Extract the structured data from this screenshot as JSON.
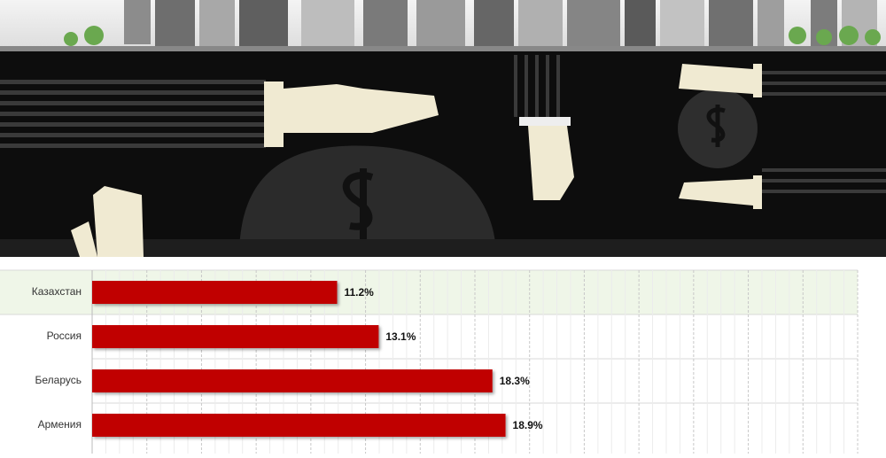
{
  "chart_data": {
    "type": "bar",
    "orientation": "horizontal",
    "categories": [
      "Казахстан",
      "Россия",
      "Беларусь",
      "Армения"
    ],
    "values": [
      11.2,
      13.1,
      18.3,
      18.9
    ],
    "value_labels": [
      "11.2%",
      "13.1%",
      "18.3%",
      "18.9%"
    ],
    "color": "#c00000",
    "xlim": [
      0,
      35
    ],
    "xticks": [
      0,
      2.5,
      5,
      7.5,
      10,
      12.5,
      15,
      17.5,
      20,
      22.5,
      25,
      27.5,
      30,
      32.5,
      35
    ],
    "grid": true
  }
}
